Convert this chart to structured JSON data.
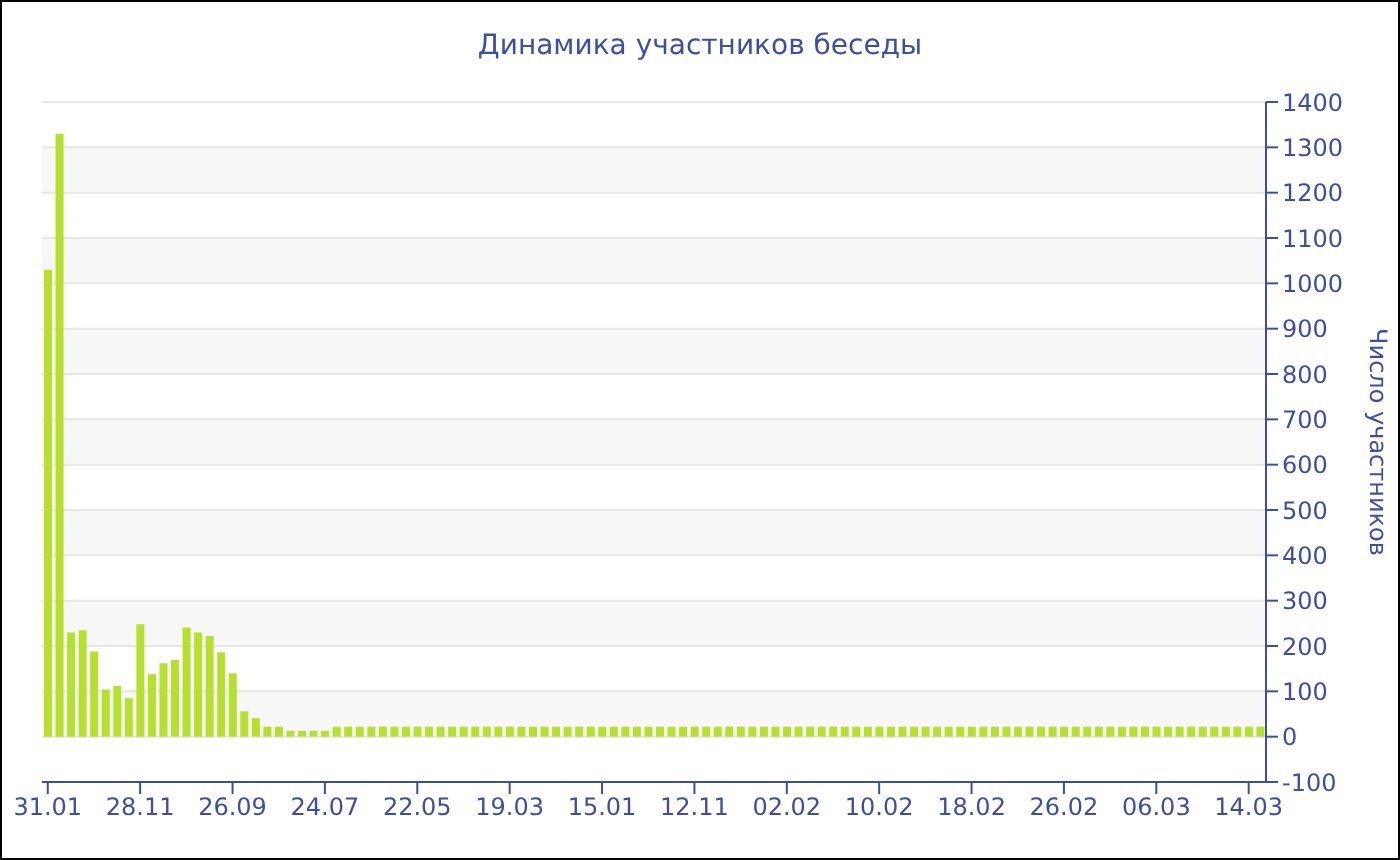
{
  "chart_data": {
    "type": "bar",
    "title": "Динамика участников беседы",
    "ylabel": "Число участников",
    "categories": [
      "31.01",
      null,
      null,
      null,
      null,
      null,
      null,
      null,
      "28.11",
      null,
      null,
      null,
      null,
      null,
      null,
      null,
      "26.09",
      null,
      null,
      null,
      null,
      null,
      null,
      null,
      "24.07",
      null,
      null,
      null,
      null,
      null,
      null,
      null,
      "22.05",
      null,
      null,
      null,
      null,
      null,
      null,
      null,
      "19.03",
      null,
      null,
      null,
      null,
      null,
      null,
      null,
      "15.01",
      null,
      null,
      null,
      null,
      null,
      null,
      null,
      "12.11",
      null,
      null,
      null,
      null,
      null,
      null,
      null,
      "02.02",
      null,
      null,
      null,
      null,
      null,
      null,
      null,
      "10.02",
      null,
      null,
      null,
      null,
      null,
      null,
      null,
      "18.02",
      null,
      null,
      null,
      null,
      null,
      null,
      null,
      "26.02",
      null,
      null,
      null,
      null,
      null,
      null,
      null,
      "06.03",
      null,
      null,
      null,
      null,
      null,
      null,
      null,
      "14.03",
      null
    ],
    "values": [
      1030,
      1330,
      230,
      235,
      188,
      104,
      112,
      85,
      248,
      138,
      162,
      169,
      241,
      230,
      222,
      186,
      140,
      56,
      41,
      22,
      22,
      13,
      13,
      13,
      13,
      22,
      22,
      22,
      22,
      22,
      22,
      22,
      22,
      22,
      22,
      22,
      22,
      22,
      22,
      22,
      22,
      22,
      22,
      22,
      22,
      22,
      22,
      22,
      22,
      22,
      22,
      22,
      22,
      22,
      22,
      22,
      22,
      22,
      22,
      22,
      22,
      22,
      22,
      22,
      22,
      22,
      22,
      22,
      22,
      22,
      22,
      22,
      22,
      22,
      22,
      22,
      22,
      22,
      22,
      22,
      22,
      22,
      22,
      22,
      22,
      22,
      22,
      22,
      22,
      22,
      22,
      22,
      22,
      22,
      22,
      22,
      22,
      22,
      22,
      22,
      22,
      22,
      22,
      22,
      22,
      22
    ],
    "color": "#b5e02e",
    "ylim": [
      -100,
      1400
    ],
    "yticks": [
      -100,
      0,
      100,
      200,
      300,
      400,
      500,
      600,
      700,
      800,
      900,
      1000,
      1100,
      1200,
      1300,
      1400
    ],
    "grid": "y"
  }
}
